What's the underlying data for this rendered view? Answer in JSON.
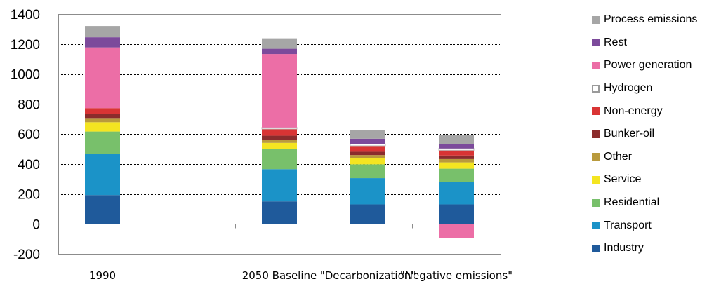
{
  "chart_data": {
    "type": "bar",
    "stacked": true,
    "title": "",
    "xlabel": "",
    "ylabel": "",
    "ylim": [
      -200,
      1400
    ],
    "yticks": [
      -200,
      0,
      200,
      400,
      600,
      800,
      1000,
      1200,
      1400
    ],
    "grid": true,
    "legend_position": "right",
    "categories": [
      "1990",
      "",
      "2050 Baseline",
      "\"Decarbonization\"",
      "\"Negative emissions\""
    ],
    "series": [
      {
        "name": "Industry",
        "color": "#1f5a9b",
        "values": [
          192,
          0,
          150,
          130,
          130
        ]
      },
      {
        "name": "Transport",
        "color": "#1b93c8",
        "values": [
          276,
          0,
          215,
          175,
          148
        ]
      },
      {
        "name": "Residential",
        "color": "#78c06b",
        "values": [
          148,
          0,
          135,
          92,
          90
        ]
      },
      {
        "name": "Service",
        "color": "#f4e521",
        "values": [
          62,
          0,
          40,
          42,
          42
        ]
      },
      {
        "name": "Other",
        "color": "#b99a3d",
        "values": [
          28,
          0,
          22,
          20,
          22
        ]
      },
      {
        "name": "Bunker-oil",
        "color": "#8b2c2c",
        "values": [
          28,
          0,
          26,
          22,
          24
        ]
      },
      {
        "name": "Non-energy",
        "color": "#d93434",
        "values": [
          38,
          0,
          45,
          40,
          35
        ]
      },
      {
        "name": "Hydrogen",
        "color": "#ffffff",
        "values": [
          0,
          0,
          10,
          12,
          12
        ]
      },
      {
        "name": "Power generation",
        "color": "#ec6ea6",
        "values": [
          405,
          0,
          490,
          0,
          -95
        ]
      },
      {
        "name": "Rest",
        "color": "#7c4a9b",
        "values": [
          68,
          0,
          35,
          35,
          30
        ]
      },
      {
        "name": "Process emissions",
        "color": "#a6a6a6",
        "values": [
          75,
          0,
          70,
          60,
          60
        ]
      }
    ]
  }
}
